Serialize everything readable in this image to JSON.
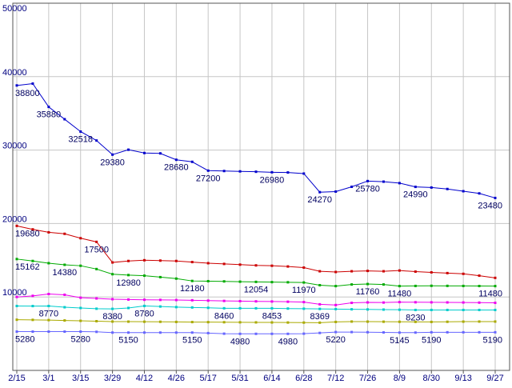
{
  "chart_data": {
    "type": "line",
    "title": "",
    "x_tick_labels": [
      "2/15",
      "3/1",
      "3/15",
      "3/29",
      "4/12",
      "4/26",
      "5/17",
      "5/31",
      "6/14",
      "6/28",
      "7/12",
      "7/26",
      "8/9",
      "8/30",
      "9/13",
      "9/27"
    ],
    "n_points": 31,
    "ylim": [
      0,
      50000
    ],
    "y_tick_values": [
      50000,
      40000,
      30000,
      20000,
      10000
    ],
    "y_tick_labels": [
      "50000",
      "40000",
      "30000",
      "20000",
      "10000"
    ],
    "grid": true,
    "legend": "none",
    "colors": {
      "background": "#ffffff",
      "grid": "#c6c6c6",
      "border": "#555555",
      "axis_text": "#000080",
      "point_label_text": "#000060"
    },
    "series": [
      {
        "name": "series-1-blue",
        "color": "#0000cc",
        "values": [
          38800,
          39050,
          35880,
          34200,
          32518,
          31300,
          29380,
          30050,
          29600,
          29550,
          28680,
          28400,
          27200,
          27150,
          27100,
          27050,
          26980,
          26950,
          26800,
          24270,
          24350,
          25000,
          25780,
          25700,
          25500,
          24990,
          24900,
          24700,
          24400,
          24100,
          23480
        ],
        "point_labels": [
          {
            "i": 0,
            "text": "38800"
          },
          {
            "i": 2,
            "text": "35880"
          },
          {
            "i": 4,
            "text": "32518"
          },
          {
            "i": 6,
            "text": "29380"
          },
          {
            "i": 10,
            "text": "28680"
          },
          {
            "i": 12,
            "text": "27200"
          },
          {
            "i": 16,
            "text": "26980"
          },
          {
            "i": 19,
            "text": "24270"
          },
          {
            "i": 22,
            "text": "25780"
          },
          {
            "i": 25,
            "text": "24990"
          },
          {
            "i": 30,
            "text": "23480"
          }
        ]
      },
      {
        "name": "series-2-red",
        "color": "#cc0000",
        "values": [
          19680,
          19200,
          18800,
          18600,
          18000,
          17500,
          14700,
          14900,
          15000,
          14950,
          14900,
          14750,
          14600,
          14500,
          14400,
          14300,
          14250,
          14150,
          14000,
          13500,
          13400,
          13500,
          13550,
          13500,
          13600,
          13450,
          13350,
          13250,
          13150,
          12900,
          12600
        ],
        "point_labels": [
          {
            "i": 0,
            "text": "19680"
          },
          {
            "i": 5,
            "text": "17500"
          }
        ]
      },
      {
        "name": "series-3-green",
        "color": "#00aa00",
        "values": [
          15162,
          14900,
          14600,
          14380,
          14250,
          13800,
          13100,
          12980,
          12900,
          12700,
          12500,
          12180,
          12150,
          12120,
          12080,
          12054,
          12020,
          12000,
          11970,
          11600,
          11480,
          11700,
          11760,
          11700,
          11480,
          11500,
          11520,
          11510,
          11500,
          11490,
          11480
        ],
        "point_labels": [
          {
            "i": 0,
            "text": "15162"
          },
          {
            "i": 3,
            "text": "14380"
          },
          {
            "i": 7,
            "text": "12980"
          },
          {
            "i": 11,
            "text": "12180"
          },
          {
            "i": 15,
            "text": "12054"
          },
          {
            "i": 18,
            "text": "11970"
          },
          {
            "i": 22,
            "text": "11760"
          },
          {
            "i": 24,
            "text": "11480"
          },
          {
            "i": 30,
            "text": "11480"
          }
        ]
      },
      {
        "name": "series-4-magenta",
        "color": "#ee00ee",
        "values": [
          10000,
          10150,
          10400,
          10300,
          9900,
          9800,
          9700,
          9650,
          9620,
          9600,
          9580,
          9550,
          9500,
          9460,
          9430,
          9400,
          9380,
          9350,
          9300,
          9000,
          8900,
          9200,
          9260,
          9240,
          9300,
          9280,
          9270,
          9260,
          9250,
          9230,
          9200
        ],
        "point_labels": []
      },
      {
        "name": "series-5-cyan",
        "color": "#00cccc",
        "values": [
          8770,
          8760,
          8770,
          8600,
          8500,
          8400,
          8380,
          8500,
          8780,
          8700,
          8620,
          8570,
          8520,
          8460,
          8458,
          8455,
          8453,
          8420,
          8400,
          8369,
          8350,
          8320,
          8300,
          8280,
          8260,
          8230,
          8230,
          8230,
          8230,
          8230,
          8230
        ],
        "point_labels": [
          {
            "i": 2,
            "text": "8770"
          },
          {
            "i": 6,
            "text": "8380"
          },
          {
            "i": 8,
            "text": "8780"
          },
          {
            "i": 13,
            "text": "8460"
          },
          {
            "i": 16,
            "text": "8453"
          },
          {
            "i": 19,
            "text": "8369"
          },
          {
            "i": 25,
            "text": "8230"
          }
        ]
      },
      {
        "name": "series-6-olive",
        "color": "#aaaa00",
        "values": [
          6900,
          6880,
          6850,
          6800,
          6750,
          6700,
          6650,
          6640,
          6630,
          6620,
          6600,
          6580,
          6570,
          6560,
          6550,
          6540,
          6530,
          6520,
          6510,
          6500,
          6600,
          6650,
          6640,
          6630,
          6620,
          6610,
          6600,
          6620,
          6640,
          6650,
          6650
        ],
        "point_labels": []
      },
      {
        "name": "series-7-lightblue",
        "color": "#6666ff",
        "values": [
          5280,
          5280,
          5280,
          5280,
          5280,
          5250,
          5150,
          5150,
          5150,
          5150,
          5150,
          5150,
          5080,
          5000,
          4980,
          4980,
          4980,
          4980,
          5000,
          5100,
          5220,
          5220,
          5200,
          5170,
          5145,
          5150,
          5190,
          5190,
          5190,
          5190,
          5190
        ],
        "point_labels": [
          {
            "i": 0,
            "text": "5280"
          },
          {
            "i": 4,
            "text": "5280"
          },
          {
            "i": 7,
            "text": "5150"
          },
          {
            "i": 11,
            "text": "5150"
          },
          {
            "i": 14,
            "text": "4980"
          },
          {
            "i": 17,
            "text": "4980"
          },
          {
            "i": 20,
            "text": "5220"
          },
          {
            "i": 24,
            "text": "5145"
          },
          {
            "i": 26,
            "text": "5190"
          },
          {
            "i": 30,
            "text": "5190"
          }
        ]
      }
    ]
  }
}
